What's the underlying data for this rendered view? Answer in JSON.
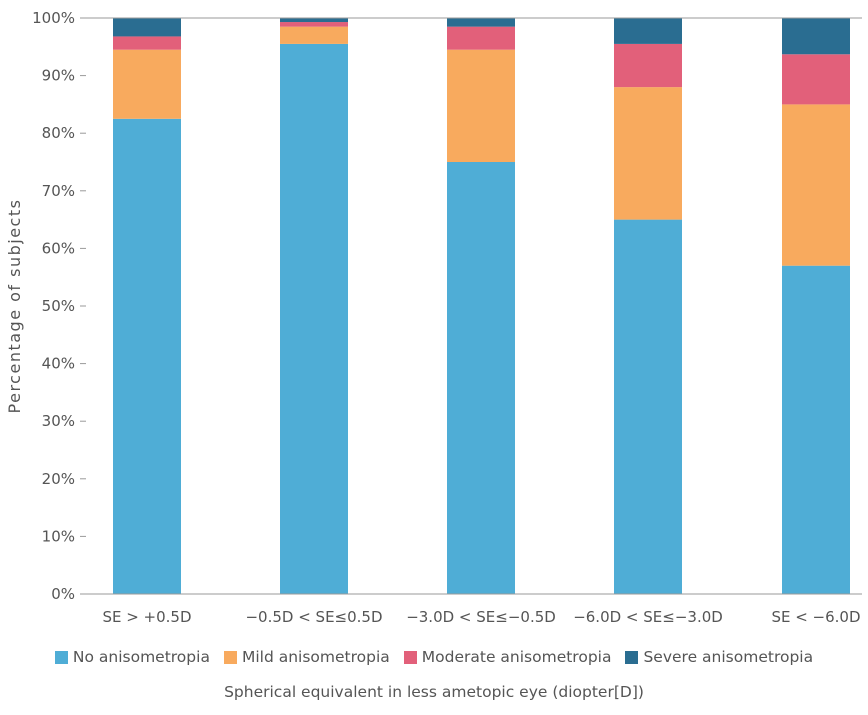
{
  "chart_data": {
    "type": "bar",
    "stacked": true,
    "categories": [
      "SE > +0.5D",
      "−0.5D < SE≤0.5D",
      "−3.0D < SE≤−0.5D",
      "−6.0D < SE≤−3.0D",
      "SE < −6.0D"
    ],
    "series": [
      {
        "name": "No anisometropia",
        "color": "#4fadd6",
        "values": [
          82.5,
          95.5,
          75.0,
          65.0,
          57.0
        ]
      },
      {
        "name": "Mild anisometropia",
        "color": "#f8aa5e",
        "values": [
          12.0,
          3.0,
          19.5,
          23.0,
          28.0
        ]
      },
      {
        "name": "Moderate anisometropia",
        "color": "#e2607a",
        "values": [
          2.3,
          0.8,
          4.0,
          7.5,
          8.7
        ]
      },
      {
        "name": "Severe anisometropia",
        "color": "#2a6d91",
        "values": [
          3.2,
          0.7,
          1.5,
          4.5,
          6.3
        ]
      }
    ],
    "ylabel": "Percentage of subjects",
    "xlabel": "Spherical equivalent in less ametopic eye (diopter[D])",
    "ylim": [
      0,
      100
    ],
    "yticks": [
      "0%",
      "10%",
      "20%",
      "30%",
      "40%",
      "50%",
      "60%",
      "70%",
      "80%",
      "90%",
      "100%"
    ],
    "grid": false,
    "legend_position": "bottom"
  }
}
